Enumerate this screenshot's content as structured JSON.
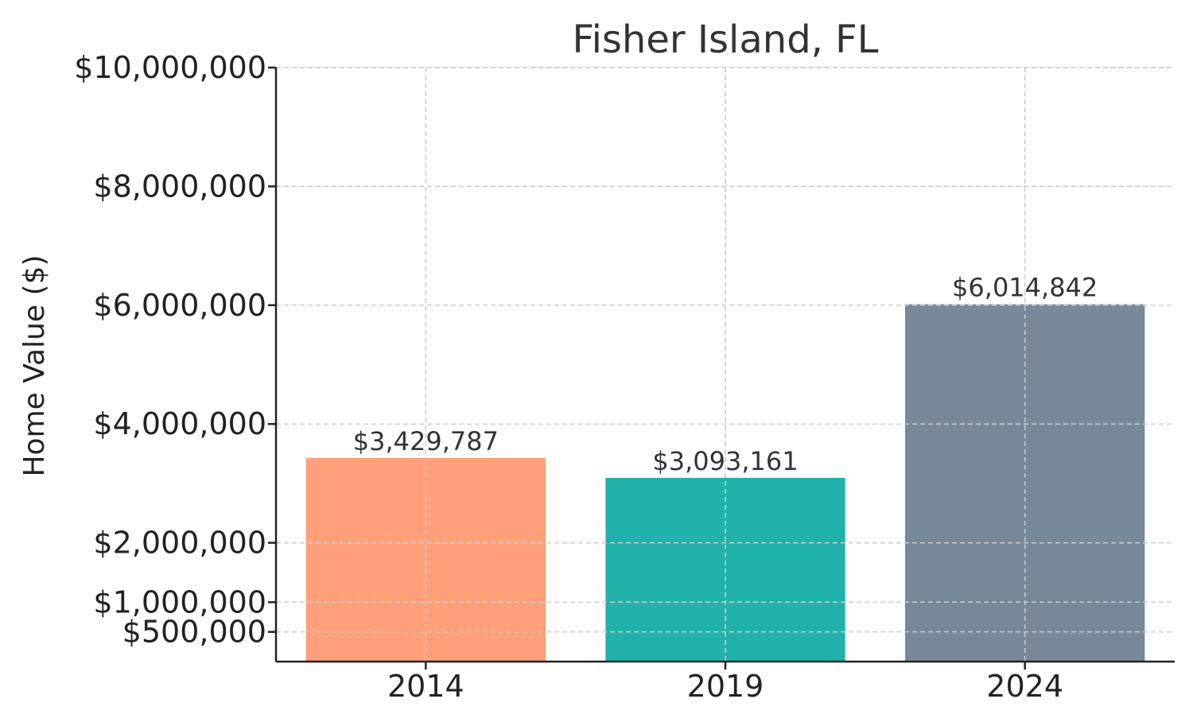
{
  "chart_data": {
    "type": "bar",
    "title": "Fisher Island, FL",
    "xlabel": "",
    "ylabel": "Home Value ($)",
    "categories": [
      "2014",
      "2019",
      "2024"
    ],
    "values": [
      3429787,
      3093161,
      6014842
    ],
    "data_labels": [
      "$3,429,787",
      "$3,093,161",
      "$6,014,842"
    ],
    "colors": [
      "#FFA07A",
      "#20B2AA",
      "#778899"
    ],
    "ylim": [
      0,
      10000000
    ],
    "yticks": [
      500000,
      1000000,
      2000000,
      4000000,
      6000000,
      8000000,
      10000000
    ],
    "ytick_labels": [
      "$500,000",
      "$1,000,000",
      "$2,000,000",
      "$4,000,000",
      "$6,000,000",
      "$8,000,000",
      "$10,000,000"
    ],
    "grid": true
  }
}
